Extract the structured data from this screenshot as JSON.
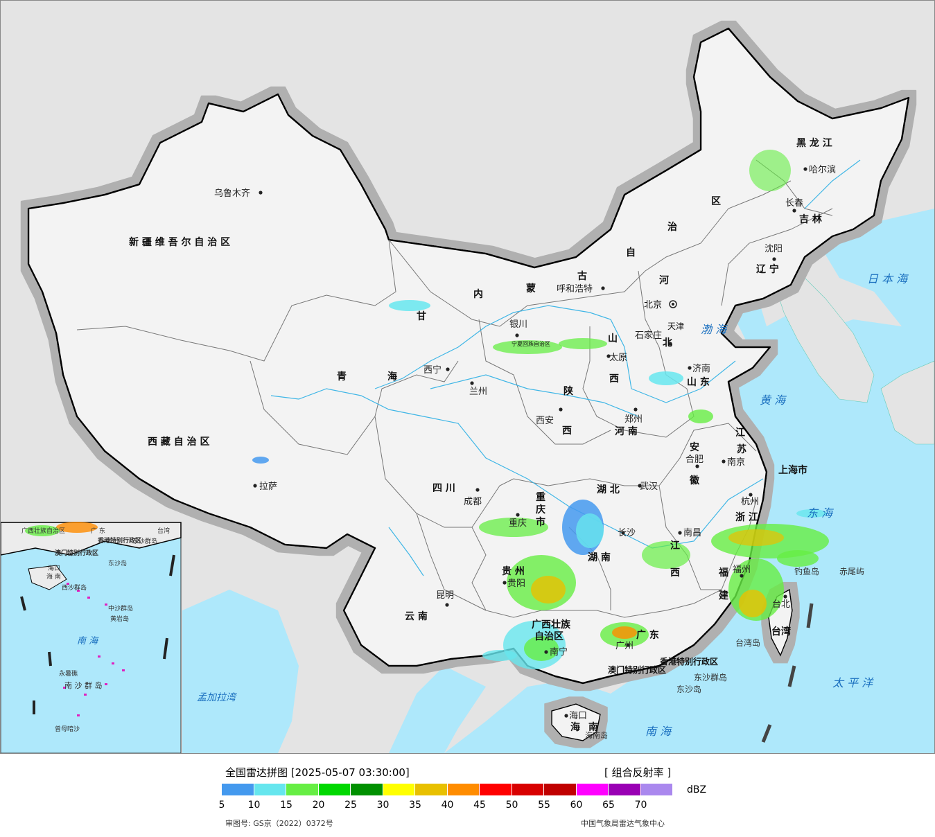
{
  "map": {
    "provinces": [
      {
        "key": "xinjiang",
        "text": "新 疆 维 吾 尔 自 治 区"
      },
      {
        "key": "xizang",
        "text": "西 藏 自 治 区"
      },
      {
        "key": "qinghai_a",
        "text": "青"
      },
      {
        "key": "qinghai_b",
        "text": "海"
      },
      {
        "key": "gansu",
        "text": "甘"
      },
      {
        "key": "neimenggu_a",
        "text": "内"
      },
      {
        "key": "neimenggu_b",
        "text": "蒙"
      },
      {
        "key": "neimenggu_c",
        "text": "古"
      },
      {
        "key": "neimenggu_d",
        "text": "自"
      },
      {
        "key": "neimenggu_e",
        "text": "治"
      },
      {
        "key": "neimenggu_f",
        "text": "区"
      },
      {
        "key": "heilongjiang",
        "text": "黑 龙 江"
      },
      {
        "key": "jilin",
        "text": "吉 林"
      },
      {
        "key": "liaoning",
        "text": "辽 宁"
      },
      {
        "key": "hebei_a",
        "text": "河"
      },
      {
        "key": "hebei_b",
        "text": "北"
      },
      {
        "key": "shanxi_a",
        "text": "山"
      },
      {
        "key": "shanxi_b",
        "text": "西"
      },
      {
        "key": "shandong",
        "text": "山 东"
      },
      {
        "key": "shaanxi_a",
        "text": "陕"
      },
      {
        "key": "shaanxi_b",
        "text": "西"
      },
      {
        "key": "henan",
        "text": "河 南"
      },
      {
        "key": "jiangsu_a",
        "text": "江"
      },
      {
        "key": "jiangsu_b",
        "text": "苏"
      },
      {
        "key": "anhui_a",
        "text": "安"
      },
      {
        "key": "anhui_b",
        "text": "徽"
      },
      {
        "key": "shanghai",
        "text": "上海市"
      },
      {
        "key": "sichuan",
        "text": "四 川"
      },
      {
        "key": "chongqing_a",
        "text": "重"
      },
      {
        "key": "chongqing_b",
        "text": "庆"
      },
      {
        "key": "chongqing_c",
        "text": "市"
      },
      {
        "key": "hubei",
        "text": "湖 北"
      },
      {
        "key": "hunan",
        "text": "湖 南"
      },
      {
        "key": "jiangxi_a",
        "text": "江"
      },
      {
        "key": "jiangxi_b",
        "text": "西"
      },
      {
        "key": "zhejiang",
        "text": "浙 江"
      },
      {
        "key": "fujian_a",
        "text": "福"
      },
      {
        "key": "fujian_b",
        "text": "建"
      },
      {
        "key": "guizhou",
        "text": "贵 州"
      },
      {
        "key": "yunnan",
        "text": "云 南"
      },
      {
        "key": "guangxi_a",
        "text": "广西壮族"
      },
      {
        "key": "guangxi_b",
        "text": "自治区"
      },
      {
        "key": "guangdong_a",
        "text": "广 东"
      },
      {
        "key": "taiwan",
        "text": "台湾"
      },
      {
        "key": "hainan_a",
        "text": "海"
      },
      {
        "key": "hainan_b",
        "text": "南"
      },
      {
        "key": "ningxia",
        "text": "宁夏回族自治区"
      },
      {
        "key": "tianjin",
        "text": "天津"
      },
      {
        "key": "beijing",
        "text": "北京"
      },
      {
        "key": "hongkong",
        "text": "香港特别行政区"
      },
      {
        "key": "macau",
        "text": "澳门特别行政区"
      }
    ],
    "cities": [
      {
        "key": "urumqi",
        "text": "乌鲁木齐"
      },
      {
        "key": "lhasa",
        "text": "拉萨"
      },
      {
        "key": "xining",
        "text": "西宁"
      },
      {
        "key": "lanzhou",
        "text": "兰州"
      },
      {
        "key": "yinchuan",
        "text": "银川"
      },
      {
        "key": "hohhot",
        "text": "呼和浩特"
      },
      {
        "key": "harbin",
        "text": "哈尔滨"
      },
      {
        "key": "changchun",
        "text": "长春"
      },
      {
        "key": "shenyang",
        "text": "沈阳"
      },
      {
        "key": "shijiazhuang",
        "text": "石家庄"
      },
      {
        "key": "taiyuan",
        "text": "太原"
      },
      {
        "key": "jinan",
        "text": "济南"
      },
      {
        "key": "zhengzhou",
        "text": "郑州"
      },
      {
        "key": "xian",
        "text": "西安"
      },
      {
        "key": "hefei",
        "text": "合肥"
      },
      {
        "key": "nanjing",
        "text": "南京"
      },
      {
        "key": "hangzhou",
        "text": "杭州"
      },
      {
        "key": "wuhan",
        "text": "武汉"
      },
      {
        "key": "chengdu",
        "text": "成都"
      },
      {
        "key": "chongqing",
        "text": "重庆"
      },
      {
        "key": "guiyang",
        "text": "贵阳"
      },
      {
        "key": "kunming",
        "text": "昆明"
      },
      {
        "key": "changsha",
        "text": "长沙"
      },
      {
        "key": "nanchang",
        "text": "南昌"
      },
      {
        "key": "fuzhou",
        "text": "福州"
      },
      {
        "key": "taibei",
        "text": "台北"
      },
      {
        "key": "nanning",
        "text": "南宁"
      },
      {
        "key": "guangzhou",
        "text": "广州"
      },
      {
        "key": "haikou",
        "text": "海口"
      }
    ],
    "seas": [
      {
        "key": "bohai",
        "text": "渤 海"
      },
      {
        "key": "huanghai",
        "text": "黄 海"
      },
      {
        "key": "donghai",
        "text": "东 海"
      },
      {
        "key": "nanhai",
        "text": "南 海"
      },
      {
        "key": "japan_sea",
        "text": "日 本 海"
      },
      {
        "key": "pacific",
        "text": "太 平 洋"
      },
      {
        "key": "bengal",
        "text": "孟加拉湾"
      }
    ],
    "islands": [
      {
        "key": "diaoyu",
        "text": "钓鱼岛"
      },
      {
        "key": "chiwei",
        "text": "赤尾屿"
      },
      {
        "key": "dongsha_qd",
        "text": "东沙群岛"
      },
      {
        "key": "dongsha_d",
        "text": "东沙岛"
      },
      {
        "key": "hainan_island",
        "text": "海南岛"
      },
      {
        "key": "taiwan_island",
        "text": "台湾岛"
      }
    ],
    "inset": {
      "sea": "南 海",
      "labels": [
        "广西壮族自治区",
        "广 东",
        "台湾",
        "香港特别行政区",
        "澳门特别行政区",
        "东沙群岛",
        "东沙岛",
        "海口",
        "海 南",
        "西沙群岛",
        "中沙群岛",
        "黄岩岛",
        "南 沙 群 岛",
        "永暑礁",
        "曾母暗沙"
      ]
    }
  },
  "legend": {
    "title": "全国雷达拼图 [2025-05-07 03:30:00]",
    "product": "[ 组合反射率 ]",
    "unit": "dBZ",
    "colors": [
      "#4499ee",
      "#66e6ee",
      "#66ee44",
      "#00d800",
      "#009000",
      "#ffff00",
      "#e8c000",
      "#ff8c00",
      "#ff0000",
      "#d80000",
      "#c00000",
      "#ff00ff",
      "#9900b4",
      "#aa88ee"
    ],
    "ticks": [
      "5",
      "10",
      "15",
      "20",
      "25",
      "30",
      "35",
      "40",
      "45",
      "50",
      "55",
      "60",
      "65",
      "70"
    ],
    "approval": "审图号: GS京（2022）0372号",
    "source": "中国气象局雷达气象中心"
  }
}
